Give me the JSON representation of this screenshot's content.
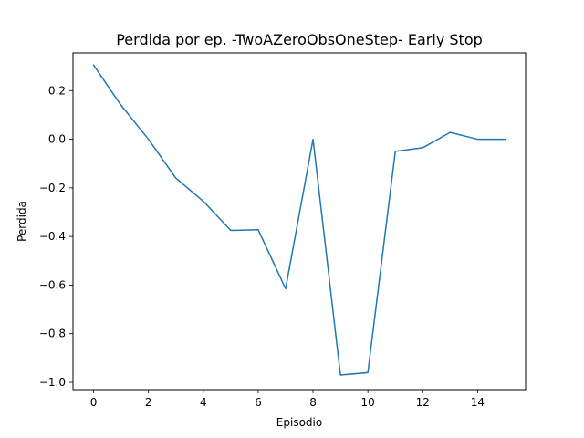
{
  "chart_data": {
    "type": "line",
    "title": "Perdida por ep. -TwoAZeroObsOneStep- Early Stop",
    "xlabel": "Episodio",
    "ylabel": "Perdida",
    "xlim": [
      -0.75,
      15.75
    ],
    "ylim": [
      -1.03,
      0.355
    ],
    "xticks": [
      0,
      2,
      4,
      6,
      8,
      10,
      12,
      14
    ],
    "xtick_labels": [
      "0",
      "2",
      "4",
      "6",
      "8",
      "10",
      "12",
      "14"
    ],
    "yticks": [
      0.2,
      0.0,
      -0.2,
      -0.4,
      -0.6,
      -0.8,
      -1.0
    ],
    "ytick_labels": [
      "0.2",
      "0.0",
      "−0.2",
      "−0.4",
      "−0.6",
      "−0.8",
      "−1.0"
    ],
    "grid": false,
    "series": [
      {
        "color": "#1f77b4",
        "x": [
          0,
          1,
          2,
          3,
          4,
          5,
          6,
          7,
          8,
          9,
          10,
          11,
          12,
          13,
          14,
          15
        ],
        "values": [
          0.305,
          0.14,
          0.0,
          -0.16,
          -0.255,
          -0.375,
          -0.372,
          -0.615,
          0.0,
          -0.97,
          -0.96,
          -0.05,
          -0.035,
          0.028,
          0.0,
          0.0
        ]
      }
    ]
  }
}
